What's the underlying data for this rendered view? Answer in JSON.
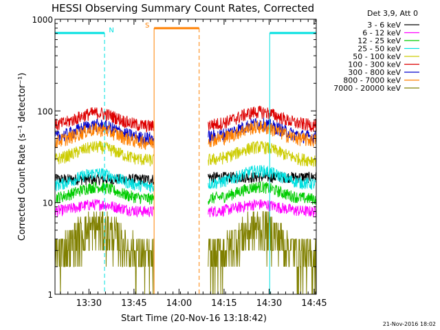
{
  "chart_data": {
    "type": "line",
    "title": "HESSI Observing Summary Count Rates, Corrected",
    "xlabel": "Start Time (20-Nov-16 13:18:42)",
    "ylabel": "Corrected Count Rate (s⁻¹ detector⁻¹)",
    "yscale": "log",
    "ylim": [
      1,
      1000
    ],
    "y_ticks": [
      "1",
      "10",
      "100",
      "1000"
    ],
    "xlim_minutes": [
      0,
      87
    ],
    "x_ticks": [
      {
        "label": "13:30",
        "minute": 11.3
      },
      {
        "label": "13:45",
        "minute": 26.3
      },
      {
        "label": "14:00",
        "minute": 41.3
      },
      {
        "label": "14:15",
        "minute": 56.3
      },
      {
        "label": "14:30",
        "minute": 71.3
      },
      {
        "label": "14:45",
        "minute": 86.3
      }
    ],
    "legend_header": "Det 3,9, Att 0",
    "legend_placement": "right",
    "timestamp": "21-Nov-2016 18:02",
    "gap_minutes": [
      33,
      51
    ],
    "series": [
      {
        "name": "3 - 6 keV",
        "color": "#000000",
        "before_gap": 18,
        "after_gap": 19,
        "peak_boost": 1.0
      },
      {
        "name": "6 - 12 keV",
        "color": "#ff00ff",
        "before_gap": 8,
        "after_gap": 8,
        "peak_boost": 1.2
      },
      {
        "name": "12 - 25 keV",
        "color": "#00cc00",
        "before_gap": 11,
        "after_gap": 11,
        "peak_boost": 1.35
      },
      {
        "name": "25 - 50 keV",
        "color": "#00e0e0",
        "before_gap": 15,
        "after_gap": 16,
        "peak_boost": 1.4
      },
      {
        "name": "50 - 100 keV",
        "color": "#cccc00",
        "before_gap": 29,
        "after_gap": 29,
        "peak_boost": 1.4
      },
      {
        "name": "100 - 300 keV",
        "color": "#dd0000",
        "before_gap": 68,
        "after_gap": 70,
        "peak_boost": 1.4
      },
      {
        "name": "300 - 800 keV",
        "color": "#0000cc",
        "before_gap": 50,
        "after_gap": 52,
        "peak_boost": 1.4
      },
      {
        "name": "800 - 7000 keV",
        "color": "#ff8000",
        "before_gap": 45,
        "after_gap": 48,
        "peak_boost": 1.4
      },
      {
        "name": "7000 - 20000 keV",
        "color": "#808000",
        "before_gap": 2,
        "after_gap": 2,
        "peak_boost": 2.2
      }
    ],
    "flags": [
      {
        "label": "N",
        "color": "#00e0e0",
        "segments": [
          [
            0,
            16.5
          ],
          [
            71.5,
            87
          ]
        ]
      },
      {
        "label": "S",
        "color": "#ff8000",
        "segments": [
          [
            33,
            48
          ]
        ]
      }
    ]
  }
}
